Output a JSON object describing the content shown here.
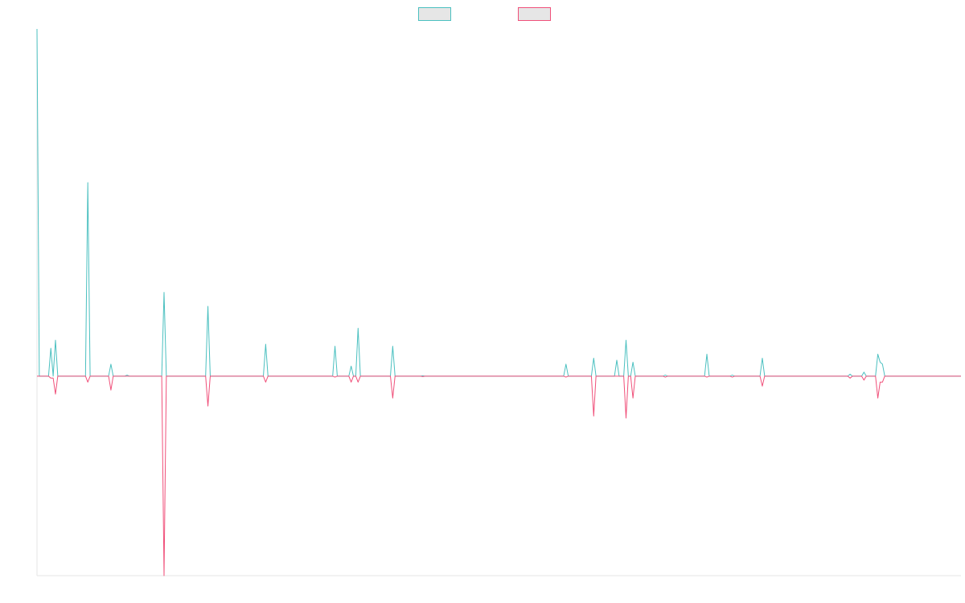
{
  "chart_data": {
    "type": "line",
    "title": "",
    "xlabel": "",
    "ylabel": "",
    "grid": false,
    "legend_position": "top-center",
    "x_range": [
      0,
      400
    ],
    "ylim": [
      -100,
      174
    ],
    "baseline": 0,
    "series": [
      {
        "color": "#4bc0c0",
        "legend_fill": "#e6e6e6",
        "points": [
          [
            0,
            174
          ],
          [
            1,
            0
          ],
          [
            5,
            0
          ],
          [
            6,
            14
          ],
          [
            7,
            0
          ],
          [
            8,
            18
          ],
          [
            9,
            0
          ],
          [
            21,
            0
          ],
          [
            22,
            97
          ],
          [
            23,
            0
          ],
          [
            31,
            0
          ],
          [
            32,
            6
          ],
          [
            33,
            0
          ],
          [
            38,
            0
          ],
          [
            39,
            0.5
          ],
          [
            40,
            0
          ],
          [
            54,
            0
          ],
          [
            55,
            42
          ],
          [
            56,
            0
          ],
          [
            73,
            0
          ],
          [
            74,
            35
          ],
          [
            75,
            0
          ],
          [
            98,
            0
          ],
          [
            99,
            16
          ],
          [
            100,
            0
          ],
          [
            128,
            0
          ],
          [
            129,
            15
          ],
          [
            130,
            0
          ],
          [
            131,
            0
          ],
          [
            135,
            0
          ],
          [
            136,
            5
          ],
          [
            137,
            0
          ],
          [
            138,
            0
          ],
          [
            139,
            24
          ],
          [
            140,
            0
          ],
          [
            142,
            0
          ],
          [
            153,
            0
          ],
          [
            154,
            15
          ],
          [
            155,
            0
          ],
          [
            166,
            0
          ],
          [
            167,
            0.2
          ],
          [
            168,
            0
          ],
          [
            228,
            0
          ],
          [
            229,
            6
          ],
          [
            230,
            0
          ],
          [
            240,
            0
          ],
          [
            241,
            9
          ],
          [
            242,
            0
          ],
          [
            250,
            0
          ],
          [
            251,
            8
          ],
          [
            252,
            0
          ],
          [
            254,
            0
          ],
          [
            255,
            18
          ],
          [
            256,
            0
          ],
          [
            257,
            0
          ],
          [
            258,
            7
          ],
          [
            259,
            0
          ],
          [
            271,
            0
          ],
          [
            272,
            0.5
          ],
          [
            273,
            0
          ],
          [
            289,
            0
          ],
          [
            290,
            11
          ],
          [
            291,
            0
          ],
          [
            300,
            0
          ],
          [
            301,
            0.5
          ],
          [
            302,
            0
          ],
          [
            313,
            0
          ],
          [
            314,
            9
          ],
          [
            315,
            0
          ],
          [
            351,
            0
          ],
          [
            352,
            1
          ],
          [
            353,
            0
          ],
          [
            357,
            0
          ],
          [
            358,
            2
          ],
          [
            359,
            0
          ],
          [
            363,
            0
          ],
          [
            364,
            11
          ],
          [
            365,
            7
          ],
          [
            366,
            6
          ],
          [
            367,
            0
          ],
          [
            400,
            0
          ]
        ]
      },
      {
        "color": "#f0507a",
        "legend_fill": "#e6e6e6",
        "points": [
          [
            0,
            0
          ],
          [
            1,
            0
          ],
          [
            5,
            0
          ],
          [
            6,
            -1
          ],
          [
            7,
            -1
          ],
          [
            8,
            -9
          ],
          [
            9,
            0
          ],
          [
            21,
            0
          ],
          [
            22,
            -3
          ],
          [
            23,
            0
          ],
          [
            31,
            0
          ],
          [
            32,
            -7
          ],
          [
            33,
            0
          ],
          [
            39,
            0
          ],
          [
            40,
            0
          ],
          [
            54,
            0
          ],
          [
            55,
            -100
          ],
          [
            56,
            0
          ],
          [
            73,
            0
          ],
          [
            74,
            -15
          ],
          [
            75,
            0
          ],
          [
            98,
            0
          ],
          [
            99,
            -3
          ],
          [
            100,
            0
          ],
          [
            128,
            0
          ],
          [
            129,
            -0.5
          ],
          [
            130,
            0
          ],
          [
            131,
            0
          ],
          [
            135,
            0
          ],
          [
            136,
            -3
          ],
          [
            137,
            0
          ],
          [
            138,
            0
          ],
          [
            139,
            -3
          ],
          [
            140,
            0
          ],
          [
            142,
            0
          ],
          [
            153,
            0
          ],
          [
            154,
            -11
          ],
          [
            155,
            0
          ],
          [
            166,
            0
          ],
          [
            167,
            -0.2
          ],
          [
            168,
            0
          ],
          [
            228,
            0
          ],
          [
            229,
            -0.5
          ],
          [
            230,
            0
          ],
          [
            240,
            0
          ],
          [
            241,
            -20
          ],
          [
            242,
            0
          ],
          [
            250,
            0
          ],
          [
            251,
            0
          ],
          [
            252,
            0
          ],
          [
            254,
            0
          ],
          [
            255,
            -21
          ],
          [
            256,
            0
          ],
          [
            257,
            0
          ],
          [
            258,
            -11
          ],
          [
            259,
            0
          ],
          [
            271,
            0
          ],
          [
            272,
            -0.5
          ],
          [
            273,
            0
          ],
          [
            289,
            0
          ],
          [
            290,
            -0.5
          ],
          [
            291,
            0
          ],
          [
            300,
            0
          ],
          [
            301,
            -0.5
          ],
          [
            302,
            0
          ],
          [
            313,
            0
          ],
          [
            314,
            -5
          ],
          [
            315,
            0
          ],
          [
            351,
            0
          ],
          [
            352,
            -1
          ],
          [
            353,
            0
          ],
          [
            357,
            0
          ],
          [
            358,
            -2
          ],
          [
            359,
            0
          ],
          [
            363,
            0
          ],
          [
            364,
            -11
          ],
          [
            365,
            -3
          ],
          [
            366,
            -3
          ],
          [
            367,
            0
          ],
          [
            400,
            0
          ]
        ]
      }
    ]
  }
}
